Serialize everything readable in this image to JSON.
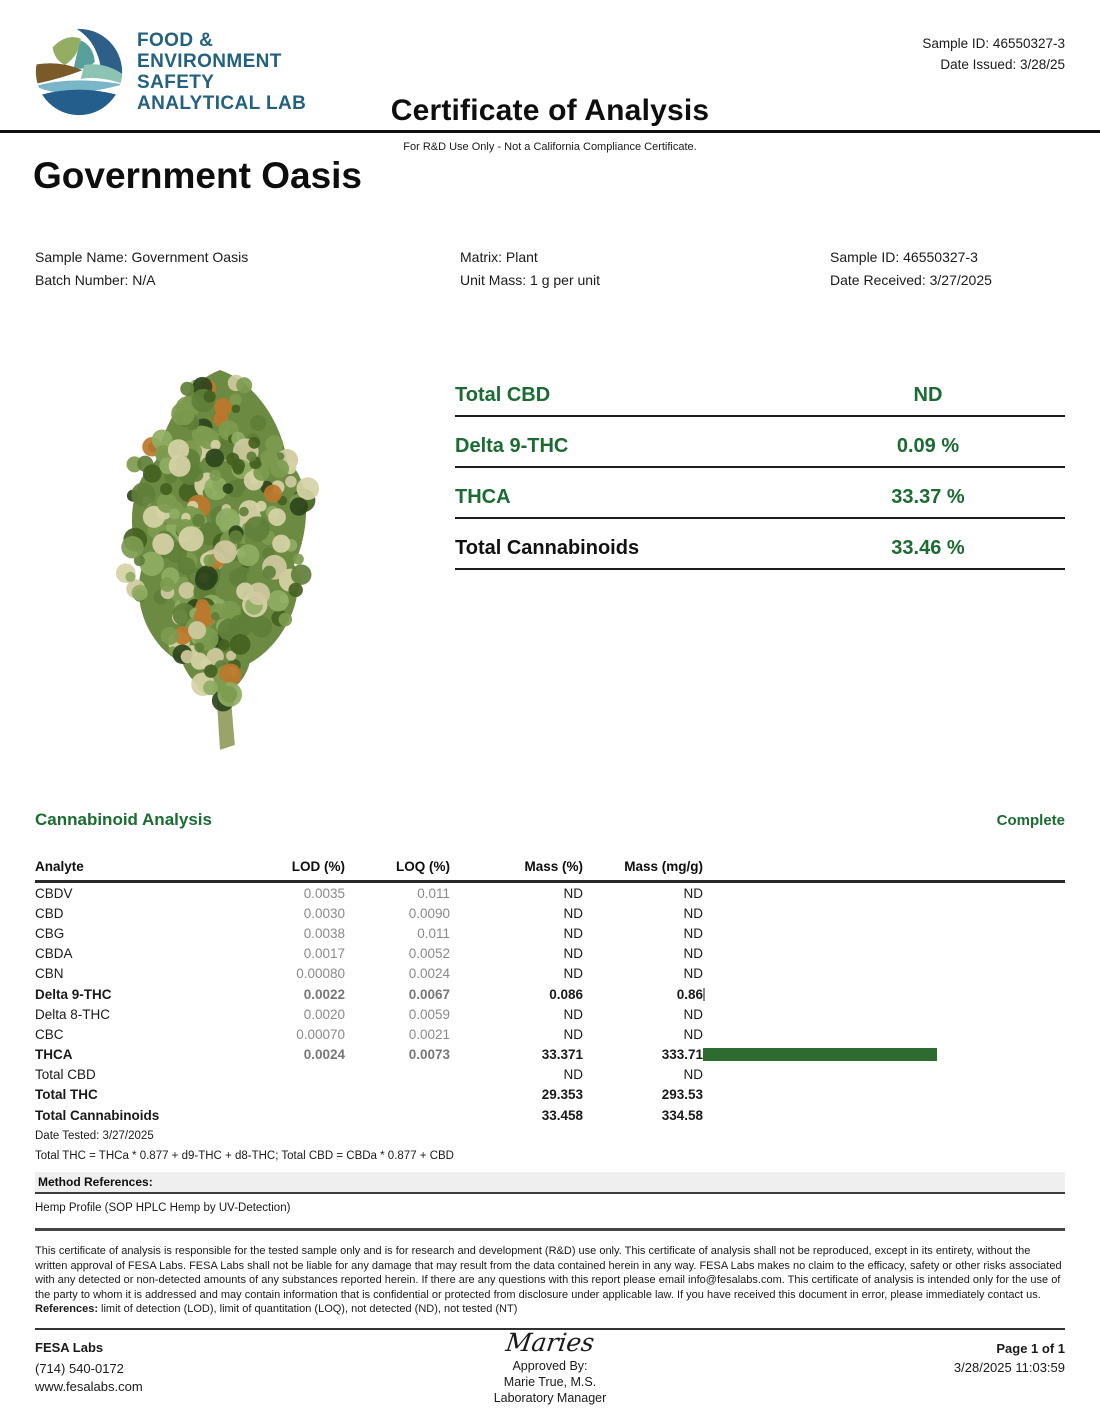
{
  "colors": {
    "accent_green": "#1b6b33",
    "bar_green": "#2d6b30",
    "small_bar_gray": "#8a8a8a",
    "logo_blue": "#22617f"
  },
  "header": {
    "logo_lines": [
      "FOOD &",
      "ENVIRONMENT",
      "SAFETY",
      "ANALYTICAL LAB"
    ],
    "sample_id": "Sample ID: 46550327-3",
    "date_issued": "Date Issued: 3/28/25",
    "title": "Certificate of Analysis",
    "subtitle": "For R&D Use Only - Not a California Compliance Certificate."
  },
  "product_title": "Government Oasis",
  "sample_info": {
    "sample_name": "Sample Name: Government Oasis",
    "batch_number": "Batch Number: N/A",
    "matrix": "Matrix: Plant",
    "unit_mass": "Unit Mass: 1 g per unit",
    "sample_id": "Sample ID: 46550327-3",
    "date_received": "Date Received: 3/27/2025"
  },
  "summary_rows": [
    {
      "label": "Total CBD",
      "value": "ND"
    },
    {
      "label": "Delta 9-THC",
      "value": "0.09 %"
    },
    {
      "label": "THCA",
      "value": "33.37 %"
    },
    {
      "label": "Total Cannabinoids",
      "value": "33.46 %"
    }
  ],
  "analysis": {
    "section_title": "Cannabinoid Analysis",
    "status": "Complete",
    "columns": [
      "Analyte",
      "LOD (%)",
      "LOQ (%)",
      "Mass (%)",
      "Mass (mg/g)"
    ],
    "rows": [
      {
        "analyte": "CBDV",
        "lod": "0.0035",
        "loq": "0.011",
        "mass_pct": "ND",
        "mass_mgg": "ND",
        "bold": false,
        "show_bar": false
      },
      {
        "analyte": "CBD",
        "lod": "0.0030",
        "loq": "0.0090",
        "mass_pct": "ND",
        "mass_mgg": "ND",
        "bold": false,
        "show_bar": false
      },
      {
        "analyte": "CBG",
        "lod": "0.0038",
        "loq": "0.011",
        "mass_pct": "ND",
        "mass_mgg": "ND",
        "bold": false,
        "show_bar": false
      },
      {
        "analyte": "CBDA",
        "lod": "0.0017",
        "loq": "0.0052",
        "mass_pct": "ND",
        "mass_mgg": "ND",
        "bold": false,
        "show_bar": false
      },
      {
        "analyte": "CBN",
        "lod": "0.00080",
        "loq": "0.0024",
        "mass_pct": "ND",
        "mass_mgg": "ND",
        "bold": false,
        "show_bar": false
      },
      {
        "analyte": "Delta 9-THC",
        "lod": "0.0022",
        "loq": "0.0067",
        "mass_pct": "0.086",
        "mass_mgg": "0.86",
        "bold": true,
        "show_bar": true
      },
      {
        "analyte": "Delta 8-THC",
        "lod": "0.0020",
        "loq": "0.0059",
        "mass_pct": "ND",
        "mass_mgg": "ND",
        "bold": false,
        "show_bar": false
      },
      {
        "analyte": "CBC",
        "lod": "0.00070",
        "loq": "0.0021",
        "mass_pct": "ND",
        "mass_mgg": "ND",
        "bold": false,
        "show_bar": false
      },
      {
        "analyte": "THCA",
        "lod": "0.0024",
        "loq": "0.0073",
        "mass_pct": "33.371",
        "mass_mgg": "333.71",
        "bold": true,
        "show_bar": true
      },
      {
        "analyte": "Total CBD",
        "lod": "",
        "loq": "",
        "mass_pct": "ND",
        "mass_mgg": "ND",
        "bold": false,
        "show_bar": false
      },
      {
        "analyte": "Total THC",
        "lod": "",
        "loq": "",
        "mass_pct": "29.353",
        "mass_mgg": "293.53",
        "bold": true,
        "show_bar": false
      },
      {
        "analyte": "Total Cannabinoids",
        "lod": "",
        "loq": "",
        "mass_pct": "33.458",
        "mass_mgg": "334.58",
        "bold": true,
        "show_bar": false
      }
    ],
    "date_tested": "Date Tested: 3/27/2025",
    "formula": "Total THC = THCa * 0.877 + d9-THC + d8-THC; Total CBD = CBDa * 0.877 + CBD",
    "method_references_label": "Method References:",
    "method": "Hemp Profile (SOP HPLC Hemp by UV-Detection)"
  },
  "disclaimer": "This certificate of analysis is responsible for the tested sample only and is for research and development (R&D) use only. This certificate of analysis shall not be reproduced, except in its entirety, without the written approval of FESA Labs. FESA Labs shall not be liable for any damage that may result from the data contained herein in any way. FESA Labs makes no claim to the efficacy, safety or other risks associated with any detected or non-detected amounts of any substances reported herein. If there are any questions with this report please email info@fesalabs.com. This certificate of analysis is intended only for the use of the party to whom it is addressed and may contain information that is confidential or protected from disclosure under applicable law. If you have received this document in error, please immediately contact us.",
  "references": {
    "label": "References:",
    "text": " limit of detection (LOD), limit of quantitation (LOQ), not detected (ND), not tested (NT)"
  },
  "footer": {
    "lab_name": "FESA Labs",
    "phone": "(714) 540-0172",
    "website": "www.fesalabs.com",
    "signature": "Maries",
    "approved_by": "Approved By:",
    "approver": "Marie True, M.S.",
    "approver_title": "Laboratory Manager",
    "page": "Page 1 of 1",
    "timestamp": "3/28/2025 11:03:59"
  }
}
